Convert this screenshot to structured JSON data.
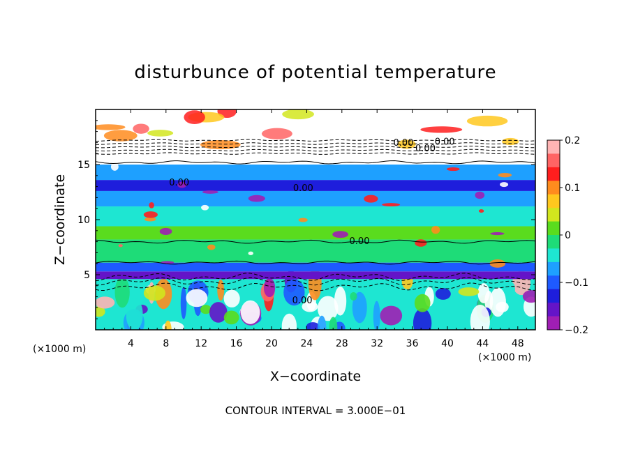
{
  "chart_data": {
    "type": "heatmap",
    "title": "disturbunce of potential temperature",
    "xlabel": "X−coordinate",
    "ylabel": "Z−coordinate",
    "x_unit": "(×1000 m)",
    "z_unit": "(×1000 m)",
    "footer": "CONTOUR INTERVAL = 3.000E−01",
    "x_range": [
      0,
      50
    ],
    "z_range": [
      0,
      20
    ],
    "x_ticks": [
      "4",
      "8",
      "12",
      "16",
      "20",
      "24",
      "28",
      "32",
      "36",
      "40",
      "44",
      "48"
    ],
    "z_ticks": [
      "5",
      "10",
      "15"
    ],
    "colorbar": {
      "range": [
        -0.2,
        0.2
      ],
      "labels": [
        "0.2",
        "0.1",
        "0",
        "−0.1",
        "−0.2"
      ],
      "colors": [
        "#ffb4b4",
        "#ff6464",
        "#ff1e1e",
        "#ff8c1e",
        "#ffc81e",
        "#d2e61e",
        "#5adc1e",
        "#1edc78",
        "#1ee6d2",
        "#1ea0ff",
        "#1e5aff",
        "#1e1edc",
        "#6414c8",
        "#a01eb4"
      ]
    },
    "contour_labels": [
      "0.00",
      "0.00",
      "0.00",
      "0.00",
      "0.00",
      "0.00",
      "0.00"
    ],
    "bands": [
      {
        "z": [
          0,
          4.6
        ],
        "value": -0.05,
        "pattern": "turbulent"
      },
      {
        "z": [
          4.6,
          5.3
        ],
        "value": -0.15
      },
      {
        "z": [
          5.3,
          6.1
        ],
        "value": -0.1
      },
      {
        "z": [
          6.1,
          8.2
        ],
        "value": 0.0
      },
      {
        "z": [
          8.2,
          9.4
        ],
        "value": 0.02
      },
      {
        "z": [
          9.4,
          11.2
        ],
        "value": -0.04
      },
      {
        "z": [
          11.2,
          12.6
        ],
        "value": -0.07
      },
      {
        "z": [
          12.6,
          13.6
        ],
        "value": -0.13
      },
      {
        "z": [
          13.6,
          15.0
        ],
        "value": -0.08
      },
      {
        "z": [
          15.0,
          16.8
        ],
        "value": 0.25
      },
      {
        "z": [
          16.8,
          20
        ],
        "value": 0.25,
        "pattern": "cloudy"
      }
    ]
  }
}
